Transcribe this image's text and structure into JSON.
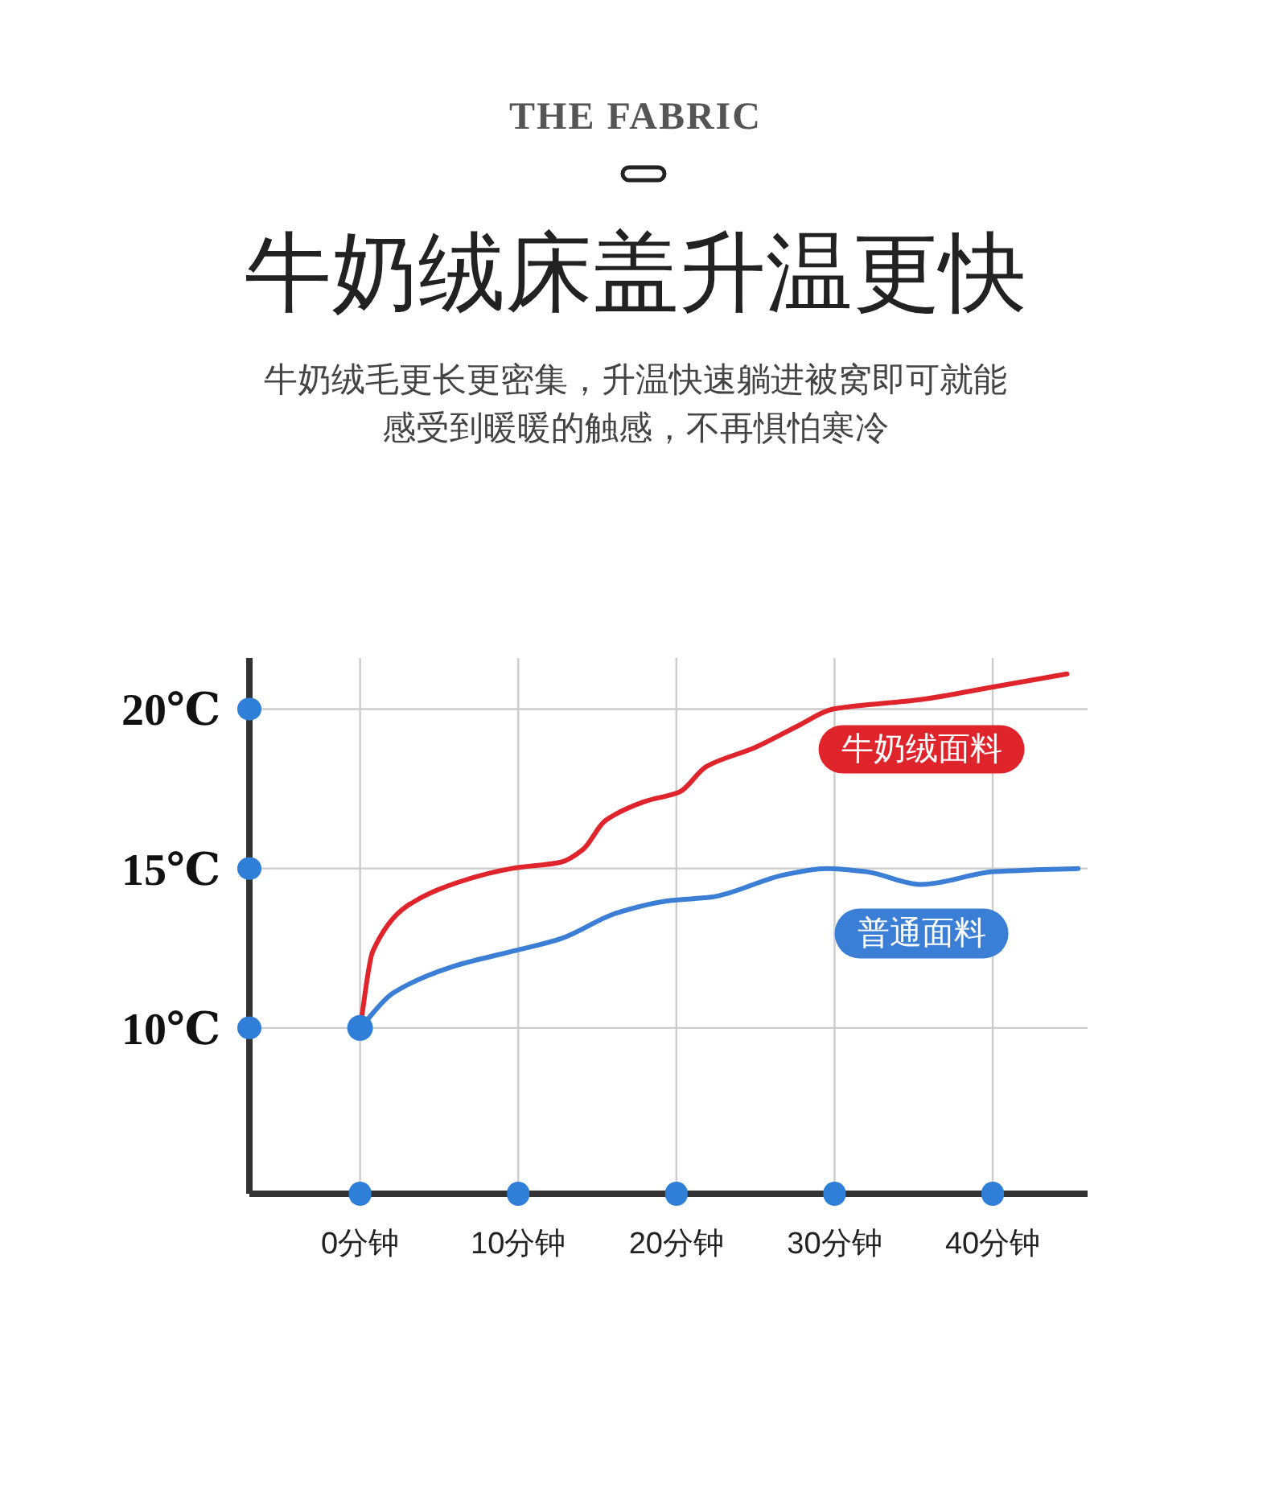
{
  "chart_data": {
    "type": "line",
    "title": "牛奶绒床盖升温更快",
    "subtitle": "牛奶绒毛更长更密集，升温快速躺进被窝即可就能感受到暖暖的触感，不再惧怕寒冷",
    "annotations": [
      "THE FABRIC"
    ],
    "xlim": [
      -7,
      46
    ],
    "ylim": [
      4.8,
      21.6
    ],
    "xticks": [
      {
        "value": 0,
        "label": "0分钟"
      },
      {
        "value": 10,
        "label": "10分钟"
      },
      {
        "value": 20,
        "label": "20分钟"
      },
      {
        "value": 30,
        "label": "30分钟"
      },
      {
        "value": 40,
        "label": "40分钟"
      }
    ],
    "yticks": [
      {
        "value": 10,
        "label": "10℃"
      },
      {
        "value": 15,
        "label": "15℃"
      },
      {
        "value": 20,
        "label": "20℃"
      }
    ],
    "grid": true,
    "series": [
      {
        "name": "牛奶绒面料",
        "color": "#e0242b",
        "x": [
          0,
          0.8,
          2.9,
          6.4,
          9.6,
          12.7,
          14.1,
          15.5,
          18.0,
          20.2,
          21.9,
          25.0,
          27.8,
          29.9,
          35.5,
          40.1,
          44.7
        ],
        "values": [
          10,
          12.4,
          13.8,
          14.6,
          15.0,
          15.2,
          15.6,
          16.5,
          17.1,
          17.4,
          18.2,
          18.8,
          19.5,
          20.0,
          20.3,
          20.7,
          21.1
        ]
      },
      {
        "name": "普通面料",
        "color": "#3a7fd5",
        "x": [
          0,
          2.1,
          5.7,
          9.6,
          12.7,
          16.2,
          19.7,
          22.2,
          26.8,
          29.5,
          32.0,
          35.5,
          40.1,
          45.4
        ],
        "values": [
          10,
          11.1,
          11.9,
          12.4,
          12.8,
          13.6,
          14.0,
          14.1,
          14.8,
          15.0,
          14.9,
          14.5,
          14.9,
          15.0
        ]
      }
    ]
  }
}
